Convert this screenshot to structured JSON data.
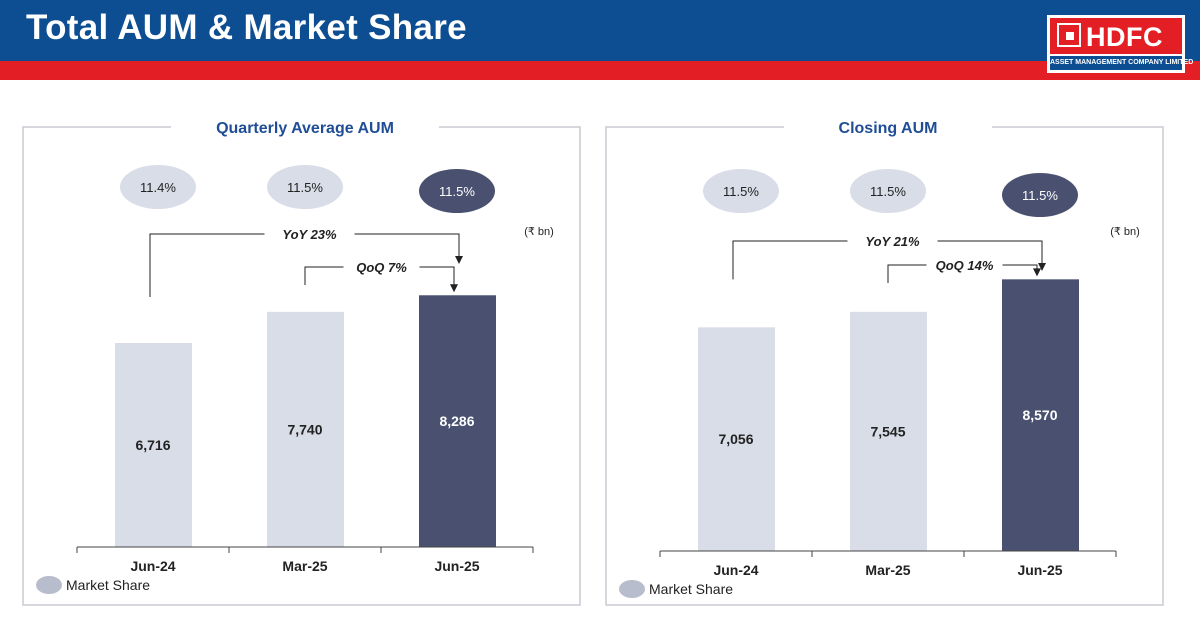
{
  "header": {
    "title": "Total AUM & Market Share",
    "logo": {
      "name": "HDFC",
      "tagline": "ASSET MANAGEMENT COMPANY LIMITED"
    }
  },
  "colors": {
    "header_blue": "#0d4d91",
    "header_red": "#e31e24",
    "bar_light": "#d9dde8",
    "bar_dark": "#4a5170",
    "title_blue": "#1f4e96",
    "ellipse_light": "#d9dde8",
    "ellipse_dark": "#4a5170"
  },
  "chart_data": [
    {
      "type": "bar",
      "title": "Quarterly Average AUM",
      "unit": "(₹ bn)",
      "categories": [
        "Jun-24",
        "Mar-25",
        "Jun-25"
      ],
      "values": [
        6716,
        7740,
        8286
      ],
      "value_labels": [
        "6,716",
        "7,740",
        "8,286"
      ],
      "highlight_index": 2,
      "market_share": [
        "11.4%",
        "11.5%",
        "11.5%"
      ],
      "legend": "Market Share",
      "annotations": {
        "yoy": "YoY 23%",
        "qoq": "QoQ 7%"
      }
    },
    {
      "type": "bar",
      "title": "Closing AUM",
      "unit": "(₹ bn)",
      "categories": [
        "Jun-24",
        "Mar-25",
        "Jun-25"
      ],
      "values": [
        7056,
        7545,
        8570
      ],
      "value_labels": [
        "7,056",
        "7,545",
        "8,570"
      ],
      "highlight_index": 2,
      "market_share": [
        "11.5%",
        "11.5%",
        "11.5%"
      ],
      "legend": "Market Share",
      "annotations": {
        "yoy": "YoY 21%",
        "qoq": "QoQ 14%"
      }
    }
  ]
}
